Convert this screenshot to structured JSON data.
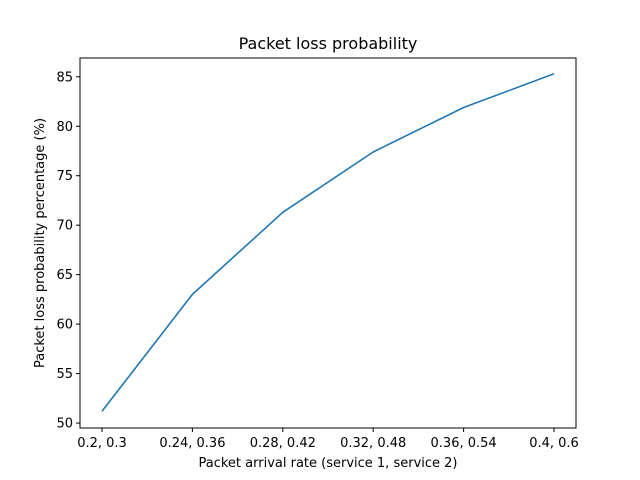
{
  "chart_data": {
    "type": "line",
    "title": "Packet loss probability",
    "xlabel": "Packet arrival rate (service 1, service 2)",
    "ylabel": "Packet loss probability percentage (%)",
    "categories": [
      "0.2, 0.3",
      "0.24, 0.36",
      "0.28, 0.42",
      "0.32, 0.48",
      "0.36, 0.54",
      "0.4, 0.6"
    ],
    "series": [
      {
        "values": [
          51.2,
          63.0,
          71.3,
          77.4,
          81.9,
          85.3
        ]
      }
    ],
    "ylim": [
      49.5,
      86.9
    ],
    "yticks": [
      50,
      55,
      60,
      65,
      70,
      75,
      80,
      85
    ],
    "grid": false,
    "legend": "none",
    "line_color": "#1f77b4"
  }
}
